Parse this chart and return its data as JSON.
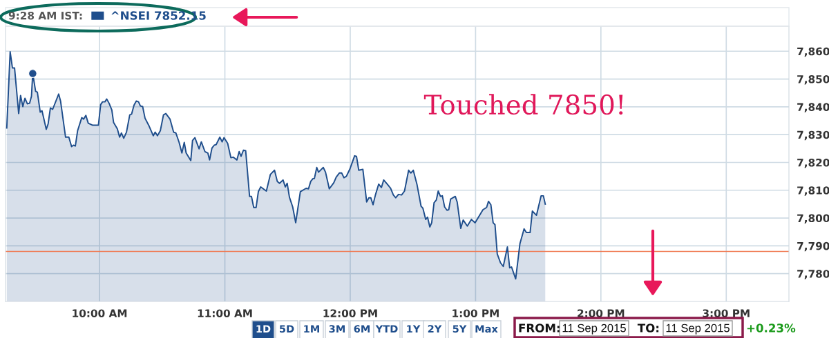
{
  "chart_data": {
    "type": "area",
    "x": [
      9.26,
      9.287,
      9.305,
      9.322,
      9.355,
      9.37,
      9.388,
      9.405,
      9.424,
      9.442,
      9.457,
      9.467,
      9.49,
      9.504,
      9.527,
      9.541,
      9.575,
      9.59,
      9.608,
      9.626,
      9.674,
      9.689,
      9.729,
      9.755,
      9.777,
      9.792,
      9.807,
      9.825,
      9.858,
      9.873,
      9.891,
      9.91,
      9.943,
      9.991,
      10.009,
      10.024,
      10.043,
      10.057,
      10.076,
      10.098,
      10.112,
      10.142,
      10.16,
      10.175,
      10.193,
      10.215,
      10.241,
      10.256,
      10.275,
      10.293,
      10.311,
      10.326,
      10.344,
      10.363,
      10.392,
      10.429,
      10.444,
      10.462,
      10.485,
      10.51,
      10.529,
      10.562,
      10.591,
      10.609,
      10.635,
      10.657,
      10.676,
      10.691,
      10.728,
      10.742,
      10.761,
      10.794,
      10.812,
      10.841,
      10.864,
      10.878,
      10.897,
      10.915,
      10.93,
      10.96,
      10.978,
      10.993,
      11.022,
      11.048,
      11.066,
      11.096,
      11.114,
      11.129,
      11.148,
      11.166,
      11.197,
      11.212,
      11.23,
      11.249,
      11.267,
      11.286,
      11.331,
      11.363,
      11.396,
      11.418,
      11.436,
      11.464,
      11.482,
      11.497,
      11.515,
      11.541,
      11.565,
      11.602,
      11.648,
      11.667,
      11.685,
      11.703,
      11.714,
      11.733,
      11.747,
      11.785,
      11.803,
      11.833,
      11.869,
      11.888,
      11.913,
      11.932,
      11.95,
      11.969,
      11.998,
      12.035,
      12.05,
      12.068,
      12.101,
      12.131,
      12.149,
      12.164,
      12.182,
      12.201,
      12.227,
      12.249,
      12.267,
      12.308,
      12.322,
      12.344,
      12.363,
      12.385,
      12.41,
      12.433,
      12.466,
      12.484,
      12.503,
      12.532,
      12.565,
      12.58,
      12.602,
      12.617,
      12.635,
      12.65,
      12.669,
      12.687,
      12.702,
      12.72,
      12.735,
      12.753,
      12.772,
      12.786,
      12.801,
      12.838,
      12.853,
      12.882,
      12.901,
      12.934,
      12.967,
      12.996,
      13.059,
      13.088,
      13.103,
      13.122,
      13.14,
      13.155,
      13.173,
      13.199,
      13.221,
      13.254,
      13.272,
      13.287,
      13.32,
      13.354,
      13.387,
      13.405,
      13.435,
      13.453,
      13.486,
      13.523,
      13.541,
      13.556
    ],
    "series": [
      {
        "name": "^NSEI 7852.15",
        "color": "#1f4e8c",
        "values": [
          7832.4,
          7859.8,
          7854.0,
          7854.0,
          7837.6,
          7844.1,
          7840.1,
          7843.1,
          7841.1,
          7841.3,
          7843.8,
          7852,
          7845.6,
          7845.3,
          7838.1,
          7838.6,
          7831.9,
          7833.9,
          7839.6,
          7839.1,
          7844.6,
          7842.1,
          7829.1,
          7829.1,
          7825.7,
          7826.2,
          7825.9,
          7831.4,
          7836.1,
          7835.6,
          7836.9,
          7834.1,
          7833.4,
          7833.4,
          7840.8,
          7841.8,
          7841.8,
          7842.8,
          7841.3,
          7838.9,
          7834.4,
          7832.1,
          7829.1,
          7830.6,
          7828.7,
          7830.9,
          7837.1,
          7837.4,
          7840.6,
          7842.1,
          7841.8,
          7840.3,
          7840.1,
          7835.9,
          7833.4,
          7829.6,
          7830.9,
          7829.6,
          7831.4,
          7837.1,
          7837.6,
          7835.6,
          7830.9,
          7830.6,
          7827.2,
          7823.4,
          7827.2,
          7823.4,
          7820.7,
          7827.9,
          7828.9,
          7824.9,
          7827.4,
          7823.9,
          7823.4,
          7820.9,
          7825.2,
          7826.2,
          7826.4,
          7829.1,
          7827.4,
          7828.9,
          7826.9,
          7821.7,
          7821.9,
          7820.9,
          7823.9,
          7822.2,
          7824.4,
          7824.2,
          7807.8,
          7807.8,
          7803.8,
          7803.8,
          7809.5,
          7811.2,
          7809.7,
          7815.7,
          7817.2,
          7813.2,
          7812.5,
          7813.7,
          7811.2,
          7812.5,
          7807.5,
          7804.0,
          7798.3,
          7809.5,
          7810.7,
          7810.5,
          7813.2,
          7814.2,
          7814.2,
          7818.2,
          7816.5,
          7818.2,
          7816.5,
          7810.5,
          7812.7,
          7814.7,
          7816.2,
          7816.2,
          7814.5,
          7815.0,
          7817.7,
          7822.4,
          7822.2,
          7817.2,
          7817.5,
          7805.8,
          7807.3,
          7807.3,
          7804.8,
          7808.3,
          7812.2,
          7811.0,
          7813.7,
          7811.5,
          7810.7,
          7808.3,
          7807.3,
          7808.5,
          7808.3,
          7809.7,
          7817.2,
          7816.2,
          7817.2,
          7812.2,
          7804.3,
          7803.5,
          7799.5,
          7800.3,
          7796.8,
          7798.3,
          7805.5,
          7806.5,
          7809.7,
          7807.8,
          7808.0,
          7804.0,
          7802.8,
          7803.0,
          7806.8,
          7807.8,
          7805.8,
          7796.3,
          7799.3,
          7797.1,
          7799.5,
          7798.3,
          7803.0,
          7803.8,
          7806.0,
          7804.8,
          7798.3,
          7797.6,
          7787.1,
          7783.9,
          7782.6,
          7789.6,
          7782.1,
          7782.4,
          7778.1,
          7790.8,
          7796.1,
          7794.8,
          7794.8,
          7802.5,
          7801.0,
          7808.0,
          7808.0,
          7805.0
        ]
      },
      {
        "type": "scatter",
        "color": "#1f4e8c",
        "x": [
          9.467
        ],
        "values": [
          7852
        ],
        "marker": "circle"
      }
    ],
    "xlim": [
      9.25,
      15.5
    ],
    "xticks": [
      {
        "value": 10,
        "label": "10:00 AM"
      },
      {
        "value": 11,
        "label": "11:00 AM"
      },
      {
        "value": 12,
        "label": "12:00 PM"
      },
      {
        "value": 13,
        "label": "1:00 PM"
      },
      {
        "value": 14,
        "label": "2:00 PM"
      },
      {
        "value": 15,
        "label": "3:00 PM"
      }
    ],
    "ylim": [
      7770,
      7869
    ],
    "yticks": [
      {
        "value": 7780,
        "label": "7,780"
      },
      {
        "value": 7790,
        "label": "7,790"
      },
      {
        "value": 7800,
        "label": "7,800"
      },
      {
        "value": 7810,
        "label": "7,810"
      },
      {
        "value": 7820,
        "label": "7,820"
      },
      {
        "value": 7830,
        "label": "7,830"
      },
      {
        "value": 7840,
        "label": "7,840"
      },
      {
        "value": 7850,
        "label": "7,850"
      },
      {
        "value": 7860,
        "label": "7,860"
      }
    ],
    "ref_lines": [
      {
        "axis": "y",
        "value": 7788,
        "color": "#f07850",
        "line_style": "solid"
      }
    ],
    "grid": true,
    "legend": "top left",
    "line_style": "solid",
    "annotations": [
      "9:28 AM IST:",
      "Touched 7850!",
      "1D",
      "5D",
      "1M",
      "3M",
      "6M",
      "YTD",
      "1Y",
      "2Y",
      "5Y",
      "Max",
      "FROM:",
      "11 Sep 2015",
      "TO:",
      "11 Sep 2015",
      "+0.23%"
    ]
  }
}
